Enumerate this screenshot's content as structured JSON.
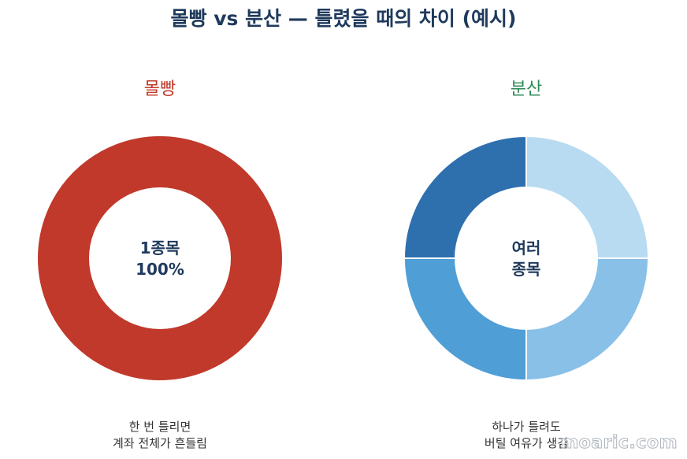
{
  "title": "몰빵 vs 분산 — 틀렸을 때의 차이 (예시)",
  "watermark": "moaric.com",
  "chart_data": [
    {
      "type": "pie",
      "title": "몰빵",
      "title_color": "#c0392b",
      "labels": [
        "1종목"
      ],
      "values": [
        100
      ],
      "colors": [
        "#c0392b"
      ],
      "center_label": [
        "1종목",
        "100%"
      ],
      "caption": [
        "한 번 틀리면",
        "계좌 전체가 흔들림"
      ]
    },
    {
      "type": "pie",
      "title": "분산",
      "title_color": "#2e8b57",
      "labels": [
        "",
        "",
        "",
        ""
      ],
      "values": [
        25,
        25,
        25,
        25
      ],
      "colors": [
        "#b8dbf2",
        "#89c0e8",
        "#4f9ed6",
        "#2e6fae"
      ],
      "center_label": [
        "여러",
        "종목"
      ],
      "caption": [
        "하나가 틀려도",
        "버틸 여유가 생김"
      ]
    }
  ]
}
